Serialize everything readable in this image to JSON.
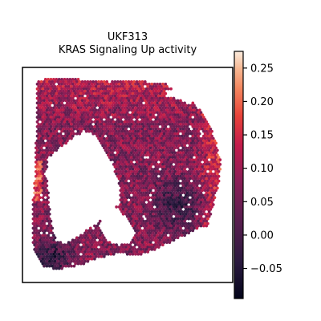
{
  "chart_data": {
    "type": "heatmap",
    "title_lines": [
      "UKF313",
      "KRAS Signaling Up activity"
    ],
    "xlabel": "",
    "ylabel": "",
    "grid": false,
    "colormap": "rocket",
    "colorbar": {
      "vmin": -0.095,
      "vmax": 0.275,
      "ticks": [
        0.25,
        0.2,
        0.15,
        0.1,
        0.05,
        0.0,
        -0.05
      ],
      "tick_labels": [
        "0.25",
        "0.20",
        "0.15",
        "0.10",
        "0.05",
        "0.00",
        "−0.05"
      ]
    },
    "tissue_activity": {
      "top_region": 0.12,
      "right_edge_region": 0.16,
      "center_region": 0.07,
      "lower_right_core": -0.03,
      "bottom_left_region": -0.04,
      "left_edge_strip": 0.18
    }
  }
}
